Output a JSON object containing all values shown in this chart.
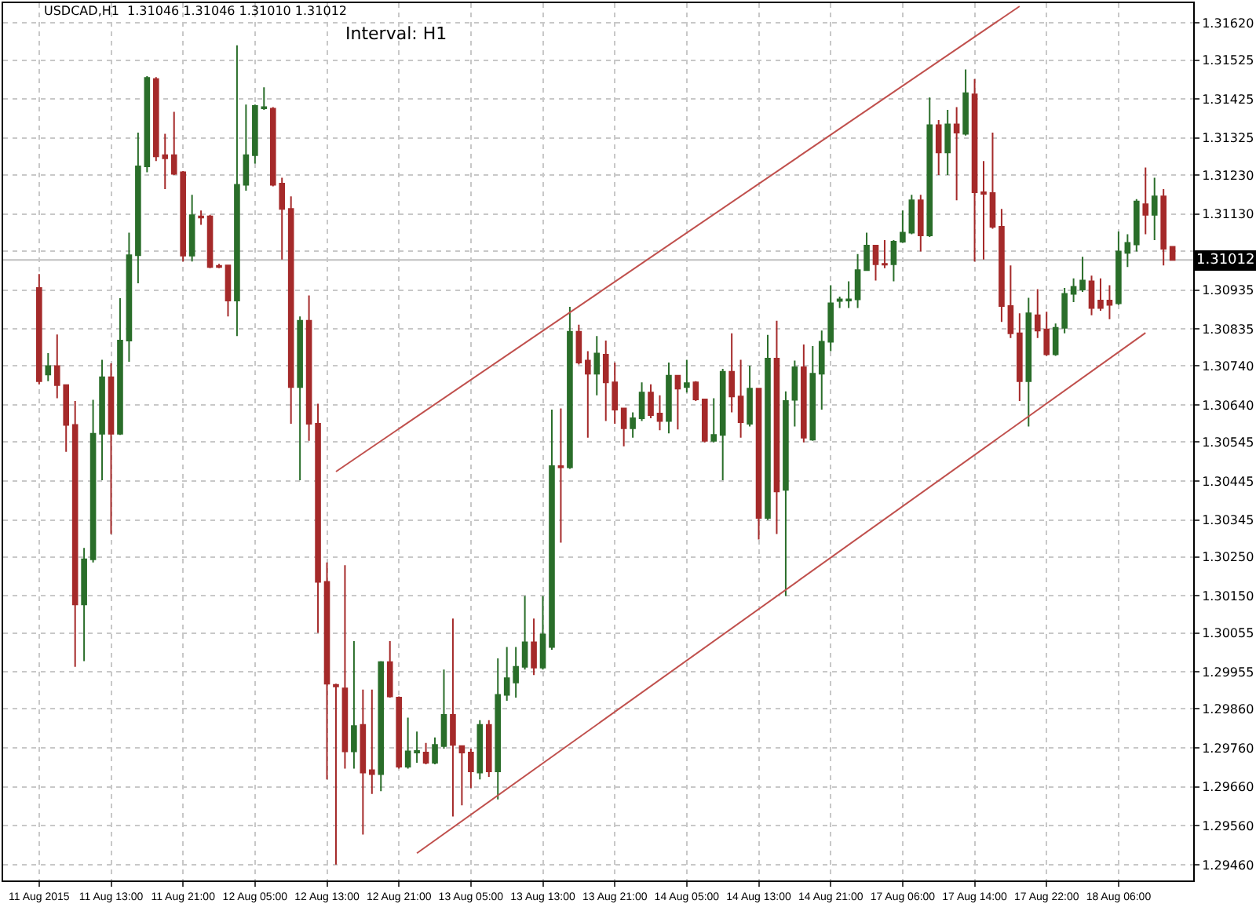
{
  "chart_data": {
    "type": "candlestick",
    "title": "USDCAD,H1  1.31046 1.31046 1.31010 1.31012",
    "annotations": [
      "Interval: H1"
    ],
    "categories": [
      "11 Aug 2015",
      null,
      null,
      null,
      null,
      null,
      null,
      null,
      "11 Aug 13:00",
      null,
      null,
      null,
      null,
      null,
      null,
      null,
      "11 Aug 21:00",
      null,
      null,
      null,
      null,
      null,
      null,
      null,
      "12 Aug 05:00",
      null,
      null,
      null,
      null,
      null,
      null,
      null,
      "12 Aug 13:00",
      null,
      null,
      null,
      null,
      null,
      null,
      null,
      "12 Aug 21:00",
      null,
      null,
      null,
      null,
      null,
      null,
      null,
      "13 Aug 05:00",
      null,
      null,
      null,
      null,
      null,
      null,
      null,
      "13 Aug 13:00",
      null,
      null,
      null,
      null,
      null,
      null,
      null,
      "13 Aug 21:00",
      null,
      null,
      null,
      null,
      null,
      null,
      null,
      "14 Aug 05:00",
      null,
      null,
      null,
      null,
      null,
      null,
      null,
      "14 Aug 13:00",
      null,
      null,
      null,
      null,
      null,
      null,
      null,
      "14 Aug 21:00",
      null,
      null,
      null,
      null,
      null,
      null,
      null,
      "17 Aug 06:00",
      null,
      null,
      null,
      null,
      null,
      null,
      null,
      "17 Aug 14:00",
      null,
      null,
      null,
      null,
      null,
      null,
      null,
      "17 Aug 22:00",
      null,
      null,
      null,
      null,
      null,
      null,
      null,
      "18 Aug 06:00",
      null,
      null,
      null,
      null,
      null,
      null
    ],
    "colors": [
      "#a52a2a",
      "#2a6e2a",
      "#a52a2a",
      "#a52a2a",
      "#a52a2a",
      "#2a6e2a",
      "#2a6e2a",
      "#2a6e2a",
      "#a52a2a",
      "#2a6e2a",
      "#2a6e2a",
      "#2a6e2a",
      "#2a6e2a",
      "#a52a2a",
      "#a52a2a",
      "#a52a2a",
      "#a52a2a",
      "#2a6e2a",
      "#a52a2a",
      "#a52a2a",
      "#a52a2a",
      "#a52a2a",
      "#2a6e2a",
      "#2a6e2a",
      "#2a6e2a",
      "#2a6e2a",
      "#a52a2a",
      "#a52a2a",
      "#a52a2a",
      "#2a6e2a",
      "#a52a2a",
      "#a52a2a",
      "#a52a2a",
      "#a52a2a",
      "#a52a2a",
      "#2a6e2a",
      "#a52a2a",
      "#a52a2a",
      "#2a6e2a",
      "#a52a2a",
      "#a52a2a",
      "#2a6e2a",
      "#2a6e2a",
      "#a52a2a",
      "#2a6e2a",
      "#2a6e2a",
      "#a52a2a",
      "#a52a2a",
      "#a52a2a",
      "#2a6e2a",
      "#a52a2a",
      "#2a6e2a",
      "#2a6e2a",
      "#2a6e2a",
      "#2a6e2a",
      "#a52a2a",
      "#2a6e2a",
      "#2a6e2a",
      "#a52a2a",
      "#2a6e2a",
      "#a52a2a",
      "#a52a2a",
      "#2a6e2a",
      "#a52a2a",
      "#a52a2a",
      "#a52a2a",
      "#2a6e2a",
      "#2a6e2a",
      "#a52a2a",
      "#a52a2a",
      "#2a6e2a",
      "#a52a2a",
      "#2a6e2a",
      "#a52a2a",
      "#a52a2a",
      "#2a6e2a",
      "#2a6e2a",
      "#a52a2a",
      "#a52a2a",
      "#2a6e2a",
      "#a52a2a",
      "#2a6e2a",
      "#a52a2a",
      "#2a6e2a",
      "#2a6e2a",
      "#a52a2a",
      "#2a6e2a",
      "#2a6e2a",
      "#2a6e2a",
      "#2a6e2a",
      "#2a6e2a",
      "#2a6e2a",
      "#2a6e2a",
      "#a52a2a",
      "#a52a2a",
      "#2a6e2a",
      "#2a6e2a",
      "#2a6e2a",
      "#a52a2a",
      "#2a6e2a",
      "#a52a2a",
      "#2a6e2a",
      "#a52a2a",
      "#2a6e2a",
      "#a52a2a",
      "#a52a2a",
      "#a52a2a",
      "#a52a2a",
      "#a52a2a",
      "#a52a2a",
      "#2a6e2a",
      "#a52a2a",
      "#a52a2a",
      "#2a6e2a",
      "#2a6e2a",
      "#2a6e2a",
      "#2a6e2a",
      "#a52a2a",
      "#a52a2a",
      "#a52a2a",
      "#2a6e2a",
      "#2a6e2a",
      "#2a6e2a",
      "#a52a2a",
      "#2a6e2a",
      "#a52a2a",
      "#a52a2a"
    ],
    "ohlc": [
      [
        1.3094,
        1.30976,
        1.30693,
        1.30701
      ],
      [
        1.30718,
        1.30773,
        1.30701,
        1.3074
      ],
      [
        1.3074,
        1.30821,
        1.30657,
        1.30691
      ],
      [
        1.30691,
        1.30693,
        1.3052,
        1.30589
      ],
      [
        1.30589,
        1.3065,
        1.29968,
        1.30128
      ],
      [
        1.30128,
        1.30273,
        1.29983,
        1.30244
      ],
      [
        1.30244,
        1.30653,
        1.30236,
        1.30566
      ],
      [
        1.30566,
        1.30756,
        1.30447,
        1.30711
      ],
      [
        1.30711,
        1.30747,
        1.30309,
        1.30566
      ],
      [
        1.30566,
        1.30914,
        1.30563,
        1.30805
      ],
      [
        1.30805,
        1.31082,
        1.30751,
        1.31024
      ],
      [
        1.31024,
        1.31339,
        1.30952,
        1.31252
      ],
      [
        1.31252,
        1.31484,
        1.31237,
        1.31479
      ],
      [
        1.31476,
        1.31481,
        1.31266,
        1.31278
      ],
      [
        1.31281,
        1.31336,
        1.31194,
        1.31273
      ],
      [
        1.31281,
        1.31392,
        1.3123,
        1.31233
      ],
      [
        1.31237,
        1.3124,
        1.31008,
        1.31023
      ],
      [
        1.31023,
        1.31179,
        1.31008,
        1.31127
      ],
      [
        1.31124,
        1.31139,
        1.31102,
        1.31121
      ],
      [
        1.31124,
        1.31128,
        1.30991,
        1.30994
      ],
      [
        1.30997,
        1.31002,
        1.30991,
        1.30994
      ],
      [
        1.30998,
        1.30998,
        1.30867,
        1.30908
      ],
      [
        1.30908,
        1.31563,
        1.30817,
        1.31205
      ],
      [
        1.31205,
        1.31411,
        1.3119,
        1.31281
      ],
      [
        1.31281,
        1.31411,
        1.31259,
        1.31407
      ],
      [
        1.31401,
        1.31455,
        1.31397,
        1.31404
      ],
      [
        1.314,
        1.31404,
        1.31201,
        1.31205
      ],
      [
        1.31208,
        1.31223,
        1.31013,
        1.31143
      ],
      [
        1.31143,
        1.31175,
        1.30592,
        1.30686
      ],
      [
        1.30686,
        1.30867,
        1.30447,
        1.30856
      ],
      [
        1.30856,
        1.30921,
        1.30548,
        1.30592
      ],
      [
        1.30592,
        1.30643,
        1.30055,
        1.30186
      ],
      [
        1.30186,
        1.30236,
        1.29679,
        1.29925
      ],
      [
        1.29922,
        1.29925,
        1.29461,
        1.29918
      ],
      [
        1.29913,
        1.30229,
        1.29707,
        1.29751
      ],
      [
        1.29751,
        1.30034,
        1.29707,
        1.29816
      ],
      [
        1.29819,
        1.2991,
        1.29538,
        1.29697
      ],
      [
        1.29703,
        1.2991,
        1.29642,
        1.29693
      ],
      [
        1.29693,
        1.29983,
        1.29649,
        1.2998
      ],
      [
        1.2998,
        1.30034,
        1.29889,
        1.29892
      ],
      [
        1.29889,
        1.29892,
        1.29707,
        1.29712
      ],
      [
        1.29712,
        1.29838,
        1.29707,
        1.29751
      ],
      [
        1.29748,
        1.29802,
        1.29722,
        1.29752
      ],
      [
        1.29748,
        1.29773,
        1.29718,
        1.29722
      ],
      [
        1.29722,
        1.29787,
        1.29718,
        1.29768
      ],
      [
        1.29765,
        1.29961,
        1.29758,
        1.29845
      ],
      [
        1.29845,
        1.30092,
        1.29584,
        1.29768
      ],
      [
        1.29765,
        1.29765,
        1.29613,
        1.29748
      ],
      [
        1.29748,
        1.29758,
        1.29657,
        1.297
      ],
      [
        1.29697,
        1.29831,
        1.29679,
        1.29819
      ],
      [
        1.29819,
        1.29831,
        1.29686,
        1.297
      ],
      [
        1.297,
        1.2999,
        1.29628,
        1.29896
      ],
      [
        1.29896,
        1.30019,
        1.29881,
        1.29939
      ],
      [
        1.29928,
        1.30019,
        1.29889,
        1.29968
      ],
      [
        1.29968,
        1.3015,
        1.29961,
        1.30031
      ],
      [
        1.30031,
        1.30092,
        1.29947,
        1.29966
      ],
      [
        1.29966,
        1.3015,
        1.29961,
        1.30051
      ],
      [
        1.30019,
        1.30628,
        1.30012,
        1.30483
      ],
      [
        1.30483,
        1.30631,
        1.30287,
        1.3048
      ],
      [
        1.3048,
        1.30892,
        1.30476,
        1.30828
      ],
      [
        1.30828,
        1.30846,
        1.30744,
        1.30749
      ],
      [
        1.30754,
        1.30778,
        1.30556,
        1.3072
      ],
      [
        1.3072,
        1.30817,
        1.30665,
        1.30772
      ],
      [
        1.30769,
        1.30805,
        1.30599,
        1.30698
      ],
      [
        1.30698,
        1.30749,
        1.30592,
        1.30628
      ],
      [
        1.30631,
        1.30631,
        1.30534,
        1.3058
      ],
      [
        1.3058,
        1.30621,
        1.30556,
        1.30606
      ],
      [
        1.30606,
        1.30698,
        1.30599,
        1.30672
      ],
      [
        1.30672,
        1.30693,
        1.30606,
        1.30614
      ],
      [
        1.30618,
        1.30665,
        1.30575,
        1.30599
      ],
      [
        1.30599,
        1.30749,
        1.30567,
        1.30715
      ],
      [
        1.30715,
        1.30715,
        1.30577,
        1.30682
      ],
      [
        1.30686,
        1.30756,
        1.30672,
        1.30696
      ],
      [
        1.30698,
        1.30701,
        1.3065,
        1.30654
      ],
      [
        1.30654,
        1.30654,
        1.30544,
        1.30548
      ],
      [
        1.30548,
        1.30657,
        1.30544,
        1.30563
      ],
      [
        1.30563,
        1.30733,
        1.30447,
        1.30725
      ],
      [
        1.30725,
        1.30824,
        1.30621,
        1.30662
      ],
      [
        1.30662,
        1.30756,
        1.30556,
        1.30596
      ],
      [
        1.30592,
        1.30741,
        1.30585,
        1.30682
      ],
      [
        1.30682,
        1.30682,
        1.30295,
        1.3035
      ],
      [
        1.3035,
        1.3082,
        1.30345,
        1.30759
      ],
      [
        1.30759,
        1.30856,
        1.30309,
        1.30418
      ],
      [
        1.30422,
        1.30675,
        1.3015,
        1.3065
      ],
      [
        1.30653,
        1.30754,
        1.30585,
        1.30737
      ],
      [
        1.30737,
        1.30795,
        1.30544,
        1.30556
      ],
      [
        1.30551,
        1.30791,
        1.30548,
        1.3072
      ],
      [
        1.3072,
        1.30831,
        1.30628,
        1.30802
      ],
      [
        1.30802,
        1.30947,
        1.30778,
        1.30901
      ],
      [
        1.30907,
        1.30918,
        1.30889,
        1.30911
      ],
      [
        1.30908,
        1.30957,
        1.30889,
        1.30911
      ],
      [
        1.30911,
        1.31027,
        1.30889,
        1.30986
      ],
      [
        1.30986,
        1.31082,
        1.30984,
        1.31049
      ],
      [
        1.31049,
        1.31049,
        1.30959,
        1.31001
      ],
      [
        1.31002,
        1.31063,
        1.30991,
        1.31
      ],
      [
        1.31001,
        1.31063,
        1.30957,
        1.31059
      ],
      [
        1.31059,
        1.31139,
        1.31056,
        1.31082
      ],
      [
        1.31082,
        1.31179,
        1.31078,
        1.31165
      ],
      [
        1.31165,
        1.31179,
        1.31034,
        1.31075
      ],
      [
        1.31075,
        1.31429,
        1.31071,
        1.31358
      ],
      [
        1.31358,
        1.31371,
        1.3123,
        1.31288
      ],
      [
        1.31288,
        1.31397,
        1.3123,
        1.3136
      ],
      [
        1.3136,
        1.31404,
        1.31165,
        1.31339
      ],
      [
        1.31336,
        1.31501,
        1.31331,
        1.3144
      ],
      [
        1.31437,
        1.31476,
        1.31008,
        1.31186
      ],
      [
        1.31186,
        1.31266,
        1.31013,
        1.31182
      ],
      [
        1.31184,
        1.31339,
        1.31092,
        1.31097
      ],
      [
        1.31097,
        1.31143,
        1.30853,
        1.30894
      ],
      [
        1.30894,
        1.30998,
        1.30812,
        1.30824
      ],
      [
        1.30824,
        1.30875,
        1.3065,
        1.30701
      ],
      [
        1.30701,
        1.30915,
        1.30585,
        1.30875
      ],
      [
        1.3087,
        1.30937,
        1.30812,
        1.30831
      ],
      [
        1.30834,
        1.30879,
        1.30766,
        1.3077
      ],
      [
        1.3077,
        1.30849,
        1.30766,
        1.30838
      ],
      [
        1.30838,
        1.3094,
        1.30824,
        1.30925
      ],
      [
        1.30925,
        1.30965,
        1.30904,
        1.30943
      ],
      [
        1.30936,
        1.3102,
        1.3093,
        1.30959
      ],
      [
        1.30957,
        1.30972,
        1.3087,
        1.30889
      ],
      [
        1.30908,
        1.30965,
        1.30882,
        1.30889
      ],
      [
        1.30908,
        1.30947,
        1.3086,
        1.30897
      ],
      [
        1.30901,
        1.31085,
        1.30897,
        1.31034
      ],
      [
        1.3103,
        1.31078,
        1.30994,
        1.31056
      ],
      [
        1.31052,
        1.31168,
        1.31034,
        1.31162
      ],
      [
        1.31155,
        1.31249,
        1.31078,
        1.31128
      ],
      [
        1.31128,
        1.31223,
        1.31063,
        1.31175
      ],
      [
        1.31175,
        1.31194,
        1.30998,
        1.31041
      ],
      [
        1.31046,
        1.31046,
        1.3101,
        1.31012
      ]
    ],
    "series": [
      {
        "type": "line",
        "color": "#c0504d",
        "values": [
          null,
          null,
          null,
          null,
          null,
          null,
          null,
          null,
          null,
          null,
          null,
          null,
          null,
          null,
          null,
          null,
          null,
          null,
          null,
          null,
          null,
          null,
          null,
          null,
          null,
          null,
          null,
          null,
          null,
          null,
          null,
          null,
          null,
          1.30469,
          null,
          null,
          null,
          null,
          null,
          null,
          null,
          null,
          null,
          null,
          null,
          null,
          null,
          null,
          null,
          null,
          null,
          null,
          null,
          null,
          null,
          null,
          null,
          null,
          null,
          null,
          null,
          null,
          null,
          null,
          null,
          null,
          null,
          null,
          null,
          null,
          null,
          null,
          null,
          null,
          null,
          null,
          null,
          null,
          null,
          null,
          null,
          null,
          null,
          null,
          null,
          null,
          null,
          null,
          null,
          null,
          null,
          null,
          null,
          null,
          null,
          null,
          null,
          null,
          null,
          null,
          null,
          null,
          null,
          null,
          null,
          null,
          null,
          null,
          null,
          1.31663,
          null,
          null,
          null,
          null,
          null,
          null,
          null,
          null,
          null,
          null,
          null,
          null,
          null,
          null,
          null,
          null,
          null
        ]
      },
      {
        "type": "line",
        "color": "#c0504d",
        "values": [
          null,
          null,
          null,
          null,
          null,
          null,
          null,
          null,
          null,
          null,
          null,
          null,
          null,
          null,
          null,
          null,
          null,
          null,
          null,
          null,
          null,
          null,
          null,
          null,
          null,
          null,
          null,
          null,
          null,
          null,
          null,
          null,
          null,
          null,
          null,
          null,
          null,
          null,
          null,
          null,
          null,
          null,
          1.2949,
          null,
          null,
          null,
          null,
          null,
          null,
          null,
          null,
          null,
          null,
          null,
          null,
          null,
          null,
          null,
          null,
          null,
          null,
          null,
          null,
          null,
          null,
          null,
          null,
          null,
          null,
          null,
          null,
          null,
          null,
          null,
          null,
          null,
          null,
          null,
          null,
          null,
          null,
          null,
          null,
          null,
          null,
          null,
          null,
          null,
          null,
          null,
          null,
          null,
          null,
          null,
          null,
          null,
          null,
          null,
          null,
          null,
          null,
          null,
          null,
          null,
          null,
          null,
          null,
          null,
          null,
          null,
          null,
          null,
          null,
          null,
          null,
          null,
          null,
          null,
          null,
          null,
          null,
          null,
          null,
          1.30825,
          null,
          null,
          null
        ]
      }
    ],
    "ref_lines": [
      {
        "axis": "y",
        "value": 1.31012,
        "label": "1.31012",
        "color": "#c0c0c0"
      }
    ],
    "ylim": [
      1.2942,
      1.31671
    ],
    "yticks": [
      {
        "value": 1.3162,
        "label": "1.31620"
      },
      {
        "value": 1.31525,
        "label": "1.31525"
      },
      {
        "value": 1.31425,
        "label": "1.31425"
      },
      {
        "value": 1.31325,
        "label": "1.31325"
      },
      {
        "value": 1.3123,
        "label": "1.31230"
      },
      {
        "value": 1.3113,
        "label": "1.31130"
      },
      {
        "value": 1.31035,
        "label": null
      },
      {
        "value": 1.30935,
        "label": "1.30935"
      },
      {
        "value": 1.30835,
        "label": "1.30835"
      },
      {
        "value": 1.3074,
        "label": "1.30740"
      },
      {
        "value": 1.3064,
        "label": "1.30640"
      },
      {
        "value": 1.30545,
        "label": "1.30545"
      },
      {
        "value": 1.30445,
        "label": "1.30445"
      },
      {
        "value": 1.30345,
        "label": "1.30345"
      },
      {
        "value": 1.3025,
        "label": "1.30250"
      },
      {
        "value": 1.3015,
        "label": "1.30150"
      },
      {
        "value": 1.30055,
        "label": "1.30055"
      },
      {
        "value": 1.29955,
        "label": "1.29955"
      },
      {
        "value": 1.2986,
        "label": "1.29860"
      },
      {
        "value": 1.2976,
        "label": "1.29760"
      },
      {
        "value": 1.2966,
        "label": "1.29660"
      },
      {
        "value": 1.2956,
        "label": "1.29560"
      },
      {
        "value": 1.2946,
        "label": "1.29460"
      }
    ],
    "grid": true
  }
}
